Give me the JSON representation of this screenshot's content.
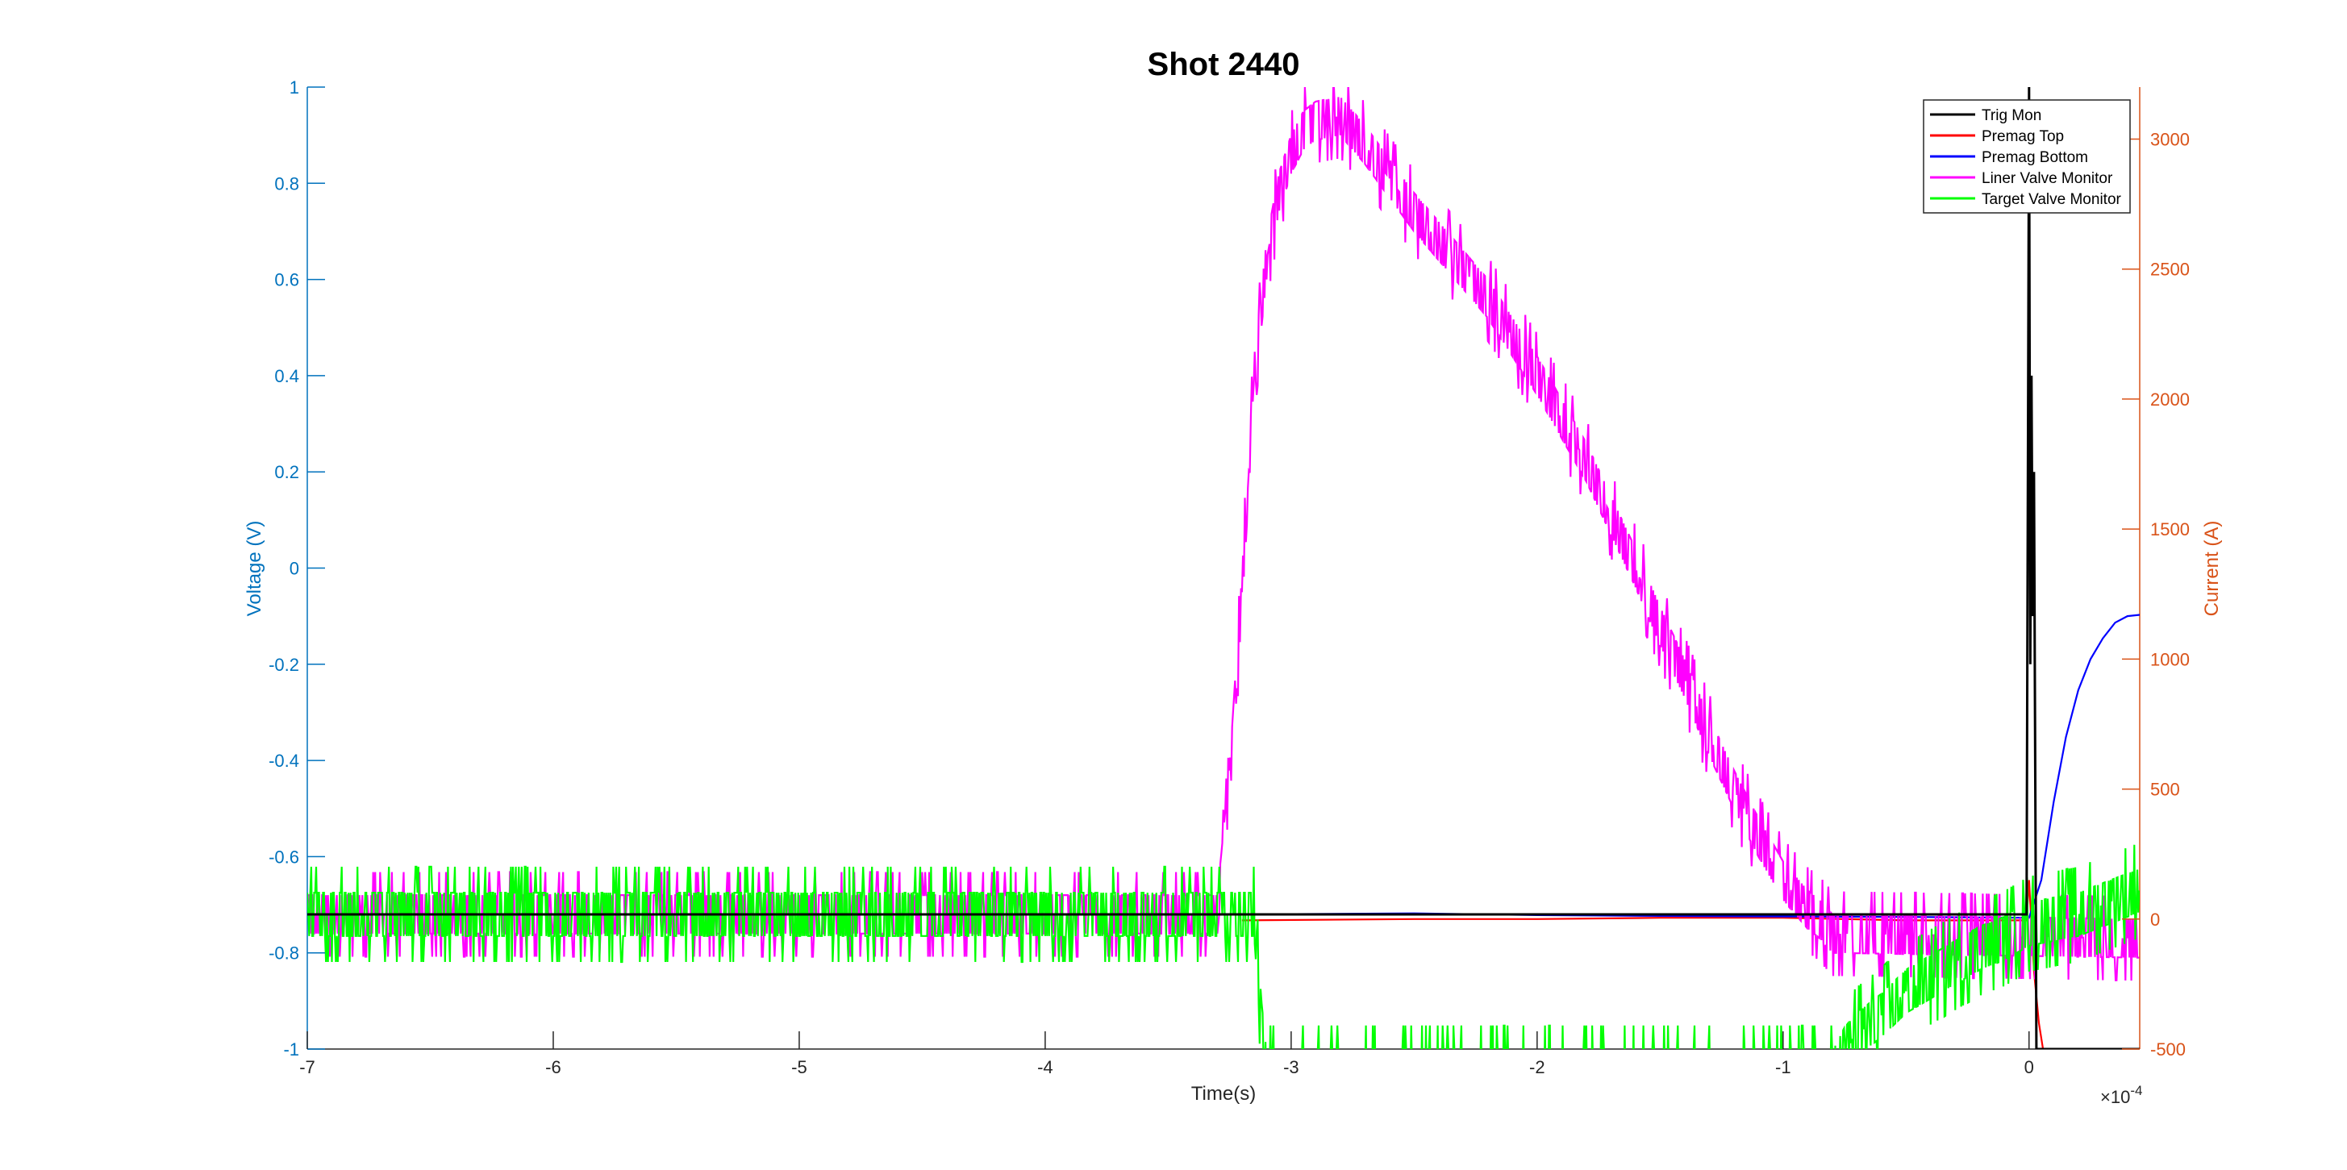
{
  "chart_data": {
    "type": "line",
    "title": "Shot 2440",
    "xlabel": "Time(s)",
    "ylabel_left": "Voltage (V)",
    "ylabel_right": "Current (A)",
    "x_exponent_label": "×10",
    "x_exponent_power": "-4",
    "xlim": [
      -7,
      0.45
    ],
    "ylim_left": [
      -1,
      1
    ],
    "ylim_right": [
      -500,
      3200
    ],
    "x_ticks": [
      -7,
      -6,
      -5,
      -4,
      -3,
      -2,
      -1,
      0
    ],
    "x_tick_labels": [
      "-7",
      "-6",
      "-5",
      "-4",
      "-3",
      "-2",
      "-1",
      "0"
    ],
    "y_left_ticks": [
      1,
      0.8,
      0.6,
      0.4,
      0.2,
      0,
      -0.2,
      -0.4,
      -0.6,
      -0.8,
      -1
    ],
    "y_left_tick_labels": [
      "1",
      "0.8",
      "0.6",
      "0.4",
      "0.2",
      "0",
      "-0.2",
      "-0.4",
      "-0.6",
      "-0.8",
      "-1"
    ],
    "y_right_ticks": [
      3000,
      2500,
      2000,
      1500,
      1000,
      500,
      0,
      -500
    ],
    "y_right_tick_labels": [
      "3000",
      "2500",
      "2000",
      "1500",
      "1000",
      "500",
      "0",
      "-500"
    ],
    "grid": false,
    "legend_position": "top-right",
    "colors": {
      "left_axis": "#0072BD",
      "right_axis": "#D95319",
      "trig_mon": "#000000",
      "premag_top": "#FF0000",
      "premag_bottom": "#0000FF",
      "liner_valve": "#FF00FF",
      "target_valve": "#00FF00"
    },
    "series": [
      {
        "name": "Trig Mon",
        "axis": "left",
        "color": "#000000",
        "x": [
          -7,
          -0.02,
          -0.01,
          0.0,
          0.005,
          0.01,
          0.015,
          0.02,
          0.03,
          0.45
        ],
        "y": [
          -0.72,
          -0.72,
          -0.72,
          1,
          -0.2,
          0.4,
          -0.1,
          0.2,
          -1,
          -1
        ]
      },
      {
        "name": "Premag Top",
        "axis": "right",
        "color": "#FF0000",
        "x": [
          -3.2,
          -2.5,
          -2.0,
          -1.5,
          -1.0,
          -0.5,
          -0.01,
          0.0,
          0.02,
          0.04,
          0.06
        ],
        "y": [
          -5,
          0,
          0,
          5,
          5,
          -5,
          -5,
          150,
          -200,
          -400,
          -520
        ]
      },
      {
        "name": "Premag Bottom",
        "axis": "right",
        "color": "#0000FF",
        "x": [
          -3.2,
          -2.5,
          -2.0,
          -1.5,
          -1.0,
          -0.5,
          0.0,
          0.05,
          0.1,
          0.15,
          0.2,
          0.25,
          0.3,
          0.35,
          0.4,
          0.45
        ],
        "y": [
          18,
          22,
          15,
          12,
          10,
          8,
          5,
          150,
          450,
          700,
          880,
          1000,
          1080,
          1140,
          1165,
          1170
        ]
      },
      {
        "name": "Liner Valve Monitor",
        "axis": "left",
        "color": "#FF00FF",
        "x": [
          -7,
          -3.3,
          -3.25,
          -3.2,
          -3.15,
          -3.1,
          -3.05,
          -3.0,
          -2.95,
          -2.9,
          -2.8,
          -2.7,
          -2.6,
          -2.5,
          -2.4,
          -2.3,
          -2.2,
          -2.1,
          -2.0,
          -1.9,
          -1.8,
          -1.7,
          -1.6,
          -1.5,
          -1.4,
          -1.3,
          -1.2,
          -1.1,
          -1.0,
          -0.9,
          -0.85,
          -0.8,
          0.45
        ],
        "y": [
          -0.72,
          -0.72,
          -0.45,
          -0.05,
          0.4,
          0.64,
          0.78,
          0.86,
          0.91,
          0.93,
          0.94,
          0.88,
          0.81,
          0.74,
          0.68,
          0.62,
          0.56,
          0.48,
          0.4,
          0.31,
          0.22,
          0.11,
          0.0,
          -0.12,
          -0.23,
          -0.35,
          -0.46,
          -0.56,
          -0.65,
          -0.71,
          -0.73,
          -0.76,
          -0.77
        ]
      },
      {
        "name": "Target Valve Monitor",
        "axis": "left",
        "color": "#00FF00",
        "x": [
          -7,
          -3.15,
          -3.14,
          -3.12,
          -3.1,
          -0.8,
          -0.75,
          -0.7,
          -0.6,
          -0.5,
          -0.4,
          -0.3,
          -0.2,
          -0.1,
          0.0,
          0.1,
          0.2,
          0.3,
          0.4,
          0.45
        ],
        "y": [
          -0.72,
          -0.72,
          -0.8,
          -0.95,
          -1.05,
          -1.05,
          -1.0,
          -0.97,
          -0.93,
          -0.88,
          -0.85,
          -0.82,
          -0.79,
          -0.77,
          -0.74,
          -0.73,
          -0.72,
          -0.7,
          -0.68,
          -0.67
        ]
      }
    ]
  }
}
